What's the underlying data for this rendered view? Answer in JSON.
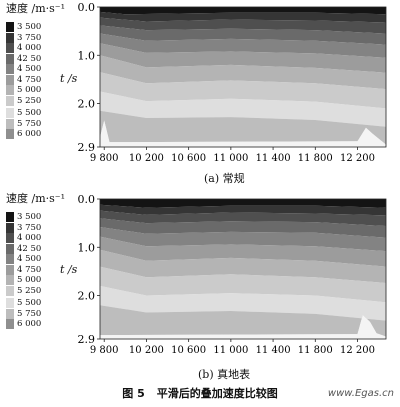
{
  "figure": {
    "label": "图 5",
    "title": "平滑后的叠加速度比较图",
    "watermark": "www.Egas.cn"
  },
  "legend": {
    "title": "速度 /m·s⁻¹",
    "entries": [
      "3 500",
      "3 750",
      "4 000",
      "42 50",
      "4 500",
      "4 750",
      "5 000",
      "5 250",
      "5 500",
      "5 750",
      "6 000"
    ],
    "colors": [
      "#141414",
      "#353535",
      "#4f4f4f",
      "#6a6a6a",
      "#838383",
      "#9c9c9c",
      "#b4b4b4",
      "#cbcbcb",
      "#dedede",
      "#bdbdbd",
      "#8f8f8f"
    ]
  },
  "chart_data": [
    {
      "type": "heatmap",
      "caption": "(a) 常规",
      "ylabel": "t /s",
      "x_ticks": [
        9800,
        10200,
        10600,
        11000,
        11400,
        11800,
        12200
      ],
      "x_tick_labels": [
        "9 800",
        "10 200",
        "10 600",
        "11 000",
        "11 400",
        "11 800",
        "12 200"
      ],
      "y_ticks": [
        0.0,
        1.0,
        2.0,
        2.9
      ],
      "y_tick_labels": [
        "0.0",
        "1.0",
        "2.0",
        "2.9"
      ],
      "xlim": [
        9760,
        12470
      ],
      "ylim": [
        0.0,
        2.9
      ],
      "bands": [
        {
          "velocity": 3500,
          "boundary": [
            [
              9760,
              0.1
            ],
            [
              10000,
              0.15
            ],
            [
              11000,
              0.12
            ],
            [
              11800,
              0.12
            ],
            [
              12470,
              0.15
            ]
          ]
        },
        {
          "velocity": 3750,
          "boundary": [
            [
              9760,
              0.22
            ],
            [
              10200,
              0.3
            ],
            [
              11000,
              0.26
            ],
            [
              11800,
              0.28
            ],
            [
              12470,
              0.32
            ]
          ]
        },
        {
          "velocity": 4000,
          "boundary": [
            [
              9760,
              0.38
            ],
            [
              10200,
              0.48
            ],
            [
              11000,
              0.45
            ],
            [
              11800,
              0.48
            ],
            [
              12470,
              0.55
            ]
          ]
        },
        {
          "velocity": 4250,
          "boundary": [
            [
              9760,
              0.55
            ],
            [
              10200,
              0.7
            ],
            [
              11000,
              0.66
            ],
            [
              11800,
              0.7
            ],
            [
              12470,
              0.78
            ]
          ]
        },
        {
          "velocity": 4500,
          "boundary": [
            [
              9760,
              0.75
            ],
            [
              10200,
              0.95
            ],
            [
              11000,
              0.92
            ],
            [
              11800,
              0.96
            ],
            [
              12470,
              1.05
            ]
          ]
        },
        {
          "velocity": 4750,
          "boundary": [
            [
              9760,
              1.0
            ],
            [
              10200,
              1.25
            ],
            [
              11000,
              1.2
            ],
            [
              11800,
              1.26
            ],
            [
              12470,
              1.36
            ]
          ]
        },
        {
          "velocity": 5000,
          "boundary": [
            [
              9760,
              1.35
            ],
            [
              10200,
              1.58
            ],
            [
              11000,
              1.52
            ],
            [
              11800,
              1.58
            ],
            [
              12470,
              1.7
            ]
          ]
        },
        {
          "velocity": 5250,
          "boundary": [
            [
              9760,
              1.75
            ],
            [
              10200,
              1.95
            ],
            [
              11000,
              1.9
            ],
            [
              11800,
              1.96
            ],
            [
              12470,
              2.1
            ]
          ]
        },
        {
          "velocity": 5500,
          "boundary": [
            [
              9760,
              2.15
            ],
            [
              10200,
              2.3
            ],
            [
              11000,
              2.28
            ],
            [
              11800,
              2.34
            ],
            [
              12470,
              2.48
            ]
          ]
        },
        {
          "velocity": 5750,
          "boundary": [
            [
              9760,
              2.7
            ],
            [
              9800,
              2.35
            ],
            [
              9850,
              2.8
            ],
            [
              12200,
              2.78
            ],
            [
              12280,
              2.5
            ],
            [
              12340,
              2.62
            ],
            [
              12470,
              2.85
            ]
          ]
        },
        {
          "velocity": 6000,
          "boundary": [
            [
              9760,
              2.9
            ],
            [
              12470,
              2.9
            ]
          ]
        }
      ]
    },
    {
      "type": "heatmap",
      "caption": "(b) 真地表",
      "ylabel": "t /s",
      "x_ticks": [
        9800,
        10200,
        10600,
        11000,
        11400,
        11800,
        12200
      ],
      "x_tick_labels": [
        "9 800",
        "10 200",
        "10 600",
        "11 000",
        "11 400",
        "11 800",
        "12 200"
      ],
      "y_ticks": [
        0.0,
        1.0,
        2.0,
        2.9
      ],
      "y_tick_labels": [
        "0.0",
        "1.0",
        "2.0",
        "2.9"
      ],
      "xlim": [
        9760,
        12470
      ],
      "ylim": [
        0.0,
        2.9
      ],
      "bands": [
        {
          "velocity": 3500,
          "boundary": [
            [
              9760,
              0.12
            ],
            [
              10200,
              0.18
            ],
            [
              11000,
              0.14
            ],
            [
              11800,
              0.14
            ],
            [
              12470,
              0.18
            ]
          ]
        },
        {
          "velocity": 3750,
          "boundary": [
            [
              9760,
              0.24
            ],
            [
              10200,
              0.33
            ],
            [
              11000,
              0.28
            ],
            [
              11800,
              0.3
            ],
            [
              12470,
              0.34
            ]
          ]
        },
        {
          "velocity": 4000,
          "boundary": [
            [
              9760,
              0.4
            ],
            [
              10200,
              0.5
            ],
            [
              11000,
              0.46
            ],
            [
              11800,
              0.48
            ],
            [
              12470,
              0.56
            ]
          ]
        },
        {
          "velocity": 4250,
          "boundary": [
            [
              9760,
              0.58
            ],
            [
              10200,
              0.72
            ],
            [
              11000,
              0.68
            ],
            [
              11800,
              0.7
            ],
            [
              12470,
              0.8
            ]
          ]
        },
        {
          "velocity": 4500,
          "boundary": [
            [
              9760,
              0.78
            ],
            [
              10200,
              0.98
            ],
            [
              11000,
              0.94
            ],
            [
              11800,
              0.98
            ],
            [
              12470,
              1.08
            ]
          ]
        },
        {
          "velocity": 4750,
          "boundary": [
            [
              9760,
              1.05
            ],
            [
              10200,
              1.28
            ],
            [
              11000,
              1.22
            ],
            [
              11800,
              1.28
            ],
            [
              12470,
              1.4
            ]
          ]
        },
        {
          "velocity": 5000,
          "boundary": [
            [
              9760,
              1.4
            ],
            [
              10200,
              1.62
            ],
            [
              11000,
              1.56
            ],
            [
              11800,
              1.62
            ],
            [
              12470,
              1.74
            ]
          ]
        },
        {
          "velocity": 5250,
          "boundary": [
            [
              9760,
              1.8
            ],
            [
              10200,
              2.0
            ],
            [
              11000,
              1.95
            ],
            [
              11800,
              2.0
            ],
            [
              12470,
              2.14
            ]
          ]
        },
        {
          "velocity": 5500,
          "boundary": [
            [
              9760,
              2.2
            ],
            [
              10200,
              2.35
            ],
            [
              11000,
              2.32
            ],
            [
              11800,
              2.38
            ],
            [
              12470,
              2.52
            ]
          ]
        },
        {
          "velocity": 5750,
          "boundary": [
            [
              9760,
              2.82
            ],
            [
              12200,
              2.8
            ],
            [
              12250,
              2.4
            ],
            [
              12320,
              2.55
            ],
            [
              12380,
              2.78
            ],
            [
              12470,
              2.85
            ]
          ]
        },
        {
          "velocity": 6000,
          "boundary": [
            [
              9760,
              2.9
            ],
            [
              12470,
              2.9
            ]
          ]
        }
      ]
    }
  ]
}
